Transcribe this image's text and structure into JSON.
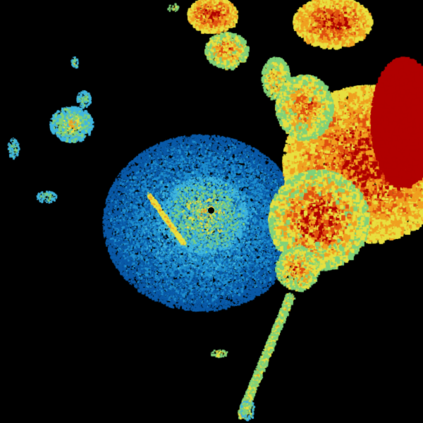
{
  "radar": {
    "background": "#000000",
    "palette": {
      "clear_air_dark": "#0a5aa8",
      "clear_air": "#1e8fd0",
      "light": "#3fb6e0",
      "light_green": "#7fd27a",
      "moderate": "#e8e040",
      "moderate_high": "#f0a020",
      "heavy": "#e05010",
      "intense": "#b00000"
    },
    "site_marker": "radar-site-dot"
  }
}
